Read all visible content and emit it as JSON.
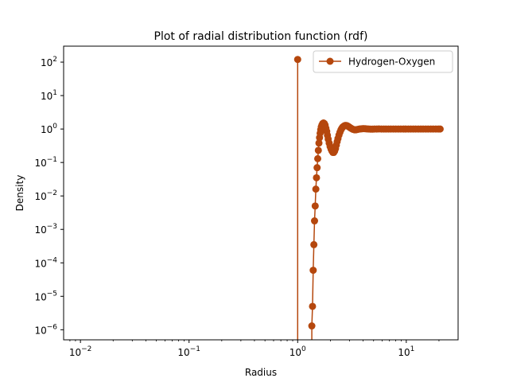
{
  "chart_data": {
    "type": "line",
    "title": "Plot of radial distribution function (rdf)",
    "xlabel": "Radius",
    "ylabel": "Density",
    "xscale": "log",
    "yscale": "log",
    "xlim": [
      0.007,
      30
    ],
    "ylim": [
      5e-07,
      300
    ],
    "grid": false,
    "legend_position": "top-right",
    "xticks": [
      {
        "value": 0.01,
        "mant": "10",
        "exp": "−2"
      },
      {
        "value": 0.1,
        "mant": "10",
        "exp": "−1"
      },
      {
        "value": 1,
        "mant": "10",
        "exp": "0"
      },
      {
        "value": 10,
        "mant": "10",
        "exp": "1"
      }
    ],
    "yticks": [
      {
        "value": 1e-06,
        "mant": "10",
        "exp": "−6"
      },
      {
        "value": 1e-05,
        "mant": "10",
        "exp": "−5"
      },
      {
        "value": 0.0001,
        "mant": "10",
        "exp": "−4"
      },
      {
        "value": 0.001,
        "mant": "10",
        "exp": "−3"
      },
      {
        "value": 0.01,
        "mant": "10",
        "exp": "−2"
      },
      {
        "value": 0.1,
        "mant": "10",
        "exp": "−1"
      },
      {
        "value": 1,
        "mant": "10",
        "exp": "0"
      },
      {
        "value": 10,
        "mant": "10",
        "exp": "1"
      },
      {
        "value": 100,
        "mant": "10",
        "exp": "2"
      }
    ],
    "series": [
      {
        "name": "Hydrogen-Oxygen",
        "color": "#b5470d",
        "x": [
          1.0,
          1.35,
          1.37,
          1.39,
          1.41,
          1.43,
          1.45,
          1.47,
          1.49,
          1.51,
          1.53,
          1.55,
          1.57,
          1.59,
          1.61,
          1.63,
          1.65,
          1.67,
          1.7,
          1.73,
          1.76,
          1.79,
          1.82,
          1.85,
          1.88,
          1.91,
          1.95,
          1.99,
          2.03,
          2.07,
          2.11,
          2.15,
          2.19,
          2.23,
          2.27,
          2.31,
          2.35,
          2.4,
          2.45,
          2.5,
          2.55,
          2.6,
          2.66,
          2.72,
          2.78,
          2.84,
          2.9,
          2.97,
          3.04,
          3.11,
          3.18,
          3.26,
          3.34,
          3.42,
          3.5,
          3.6,
          3.7,
          3.8,
          3.92,
          4.05,
          4.2,
          4.35,
          4.52,
          4.7,
          4.9,
          5.1,
          5.35,
          5.6,
          5.9,
          6.2,
          6.5,
          6.85,
          7.2,
          7.6,
          8.0,
          8.45,
          8.9,
          9.4,
          9.9,
          10.45,
          11.0,
          11.6,
          12.2,
          12.9,
          13.6,
          14.3,
          15.1,
          15.9,
          16.8,
          17.7,
          18.7,
          19.7,
          20.5
        ],
        "y": [
          120,
          1.3e-06,
          5e-06,
          6e-05,
          0.00035,
          0.0018,
          0.005,
          0.016,
          0.035,
          0.07,
          0.13,
          0.23,
          0.38,
          0.55,
          0.75,
          0.95,
          1.15,
          1.3,
          1.45,
          1.52,
          1.45,
          1.3,
          1.05,
          0.85,
          0.65,
          0.5,
          0.38,
          0.3,
          0.25,
          0.22,
          0.2,
          0.2,
          0.22,
          0.26,
          0.33,
          0.42,
          0.52,
          0.66,
          0.8,
          0.94,
          1.05,
          1.15,
          1.22,
          1.27,
          1.28,
          1.26,
          1.22,
          1.16,
          1.1,
          1.05,
          1.0,
          0.97,
          0.95,
          0.95,
          0.96,
          0.98,
          1.0,
          1.01,
          1.02,
          1.03,
          1.02,
          1.01,
          1.0,
          0.99,
          0.99,
          1.0,
          1.0,
          1.01,
          1.0,
          1.0,
          1.0,
          1.0,
          1.0,
          1.0,
          1.0,
          1.0,
          1.0,
          1.0,
          1.0,
          1.0,
          1.0,
          1.0,
          1.0,
          1.0,
          1.0,
          1.0,
          1.0,
          1.0,
          1.0,
          1.0,
          1.0,
          1.0,
          1.0
        ],
        "spike": {
          "x": 1.0,
          "y_from": 5e-07,
          "y_to": 120
        }
      }
    ]
  }
}
